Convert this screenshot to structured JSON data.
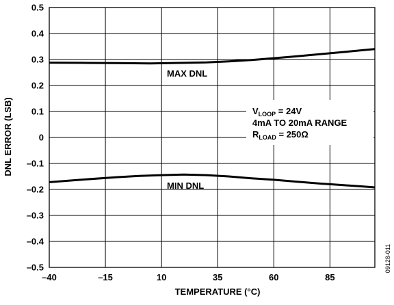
{
  "chart_data": {
    "type": "line",
    "xlabel": "TEMPERATURE (°C)",
    "ylabel": "DNL ERROR (LSB)",
    "xlim": [
      -40,
      105
    ],
    "ylim": [
      -0.5,
      0.5
    ],
    "x_ticks": [
      -40,
      -15,
      10,
      35,
      60,
      85
    ],
    "x_tick_labels": [
      "–40",
      "–15",
      "10",
      "35",
      "60",
      "85"
    ],
    "y_ticks": [
      0.5,
      0.4,
      0.3,
      0.2,
      0.1,
      0,
      -0.1,
      -0.2,
      -0.3,
      -0.4,
      -0.5
    ],
    "y_tick_labels": [
      "0.5",
      "0.4",
      "0.3",
      "0.2",
      "0.1",
      "0",
      "–0.1",
      "–0.2",
      "–0.3",
      "–0.4",
      "–0.5"
    ],
    "grid": true,
    "series": [
      {
        "name": "MAX DNL",
        "x": [
          -40,
          -25,
          -10,
          5,
          20,
          30,
          40,
          50,
          60,
          70,
          80,
          90,
          100,
          105
        ],
        "values": [
          0.288,
          0.287,
          0.286,
          0.285,
          0.287,
          0.289,
          0.293,
          0.298,
          0.305,
          0.312,
          0.32,
          0.328,
          0.336,
          0.34
        ]
      },
      {
        "name": "MIN DNL",
        "x": [
          -40,
          -25,
          -10,
          0,
          10,
          20,
          30,
          40,
          50,
          60,
          70,
          80,
          90,
          100,
          105
        ],
        "values": [
          -0.172,
          -0.162,
          -0.153,
          -0.148,
          -0.145,
          -0.143,
          -0.145,
          -0.15,
          -0.157,
          -0.163,
          -0.17,
          -0.177,
          -0.183,
          -0.189,
          -0.192
        ]
      }
    ],
    "annotation": {
      "line1_main": "V",
      "line1_sub": "LOOP",
      "line1_rest": " = 24V",
      "line2": "4mA TO 20mA RANGE",
      "line3_main": "R",
      "line3_sub": "LOAD",
      "line3_rest": " = 250Ω"
    }
  },
  "figure_id": "09128-011"
}
